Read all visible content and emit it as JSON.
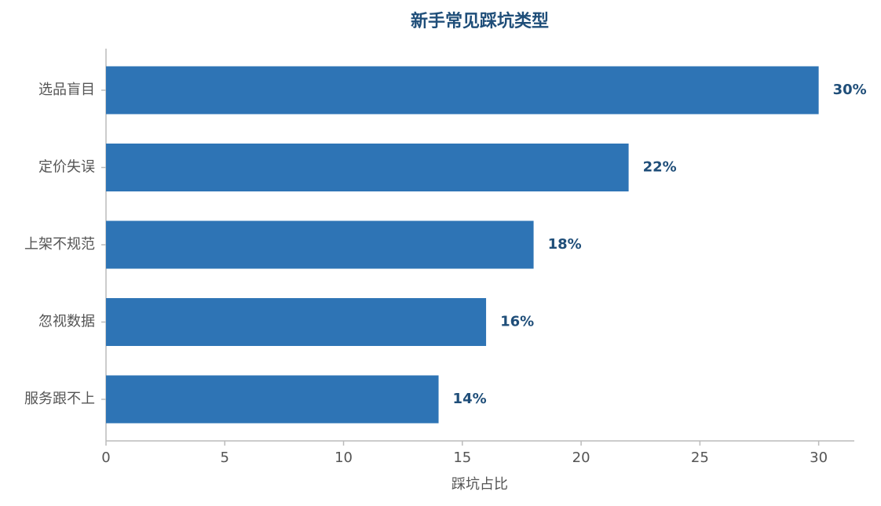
{
  "chart_data": {
    "type": "barh",
    "title": "新手常见踩坑类型",
    "xlabel": "踩坑占比",
    "categories": [
      "选品盲目",
      "定价失误",
      "上架不规范",
      "忽视数据",
      "服务跟不上"
    ],
    "values": [
      30,
      22,
      18,
      16,
      14
    ],
    "value_labels": [
      "30%",
      "22%",
      "18%",
      "16%",
      "14%"
    ],
    "color": "#2e74b5",
    "xlim": [
      0,
      31.5
    ],
    "xticks": [
      0,
      5,
      10,
      15,
      20,
      25,
      30
    ],
    "grid": false
  }
}
